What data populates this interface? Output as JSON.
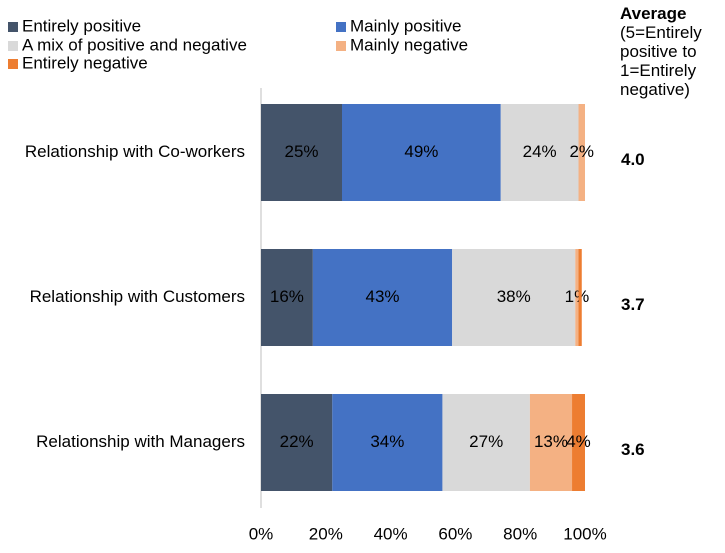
{
  "chart_data": {
    "type": "stacked-bar-horizontal",
    "categories": [
      "Relationship with Co-workers",
      "Relationship with Customers",
      "Relationship with Managers"
    ],
    "series": [
      {
        "name": "Entirely positive",
        "color": "#44546a",
        "label_color": "#ffffff",
        "values": [
          25,
          16,
          22
        ],
        "value_labels": [
          "25%",
          "16%",
          "22%"
        ]
      },
      {
        "name": "Mainly positive",
        "color": "#4472c4",
        "label_color": "#ffffff",
        "values": [
          49,
          43,
          34
        ],
        "value_labels": [
          "49%",
          "43%",
          "34%"
        ]
      },
      {
        "name": "A mix of positive and negative",
        "color": "#d9d9d9",
        "label_color": "#000000",
        "values": [
          24,
          38,
          27
        ],
        "value_labels": [
          "24%",
          "38%",
          "27%"
        ]
      },
      {
        "name": "Mainly negative",
        "color": "#f4b183",
        "label_color": "#000000",
        "values": [
          2,
          1,
          13
        ],
        "value_labels": [
          "2%",
          "1%",
          "13%"
        ]
      },
      {
        "name": "Entirely negative",
        "color": "#ed7d31",
        "label_color": "#000000",
        "values": [
          0,
          1,
          4
        ],
        "value_labels": [
          null,
          null,
          "4%"
        ]
      }
    ],
    "xlim": [
      0,
      100
    ],
    "xticks": [
      {
        "value": 0,
        "label": "0%"
      },
      {
        "value": 20,
        "label": "20%"
      },
      {
        "value": 40,
        "label": "40%"
      },
      {
        "value": 60,
        "label": "60%"
      },
      {
        "value": 80,
        "label": "80%"
      },
      {
        "value": 100,
        "label": "100%"
      }
    ],
    "average_title": "Average",
    "average_subtitle": "(5=Entirely positive to 1=Entirely negative)",
    "averages": [
      "4.0",
      "3.7",
      "3.6"
    ]
  }
}
